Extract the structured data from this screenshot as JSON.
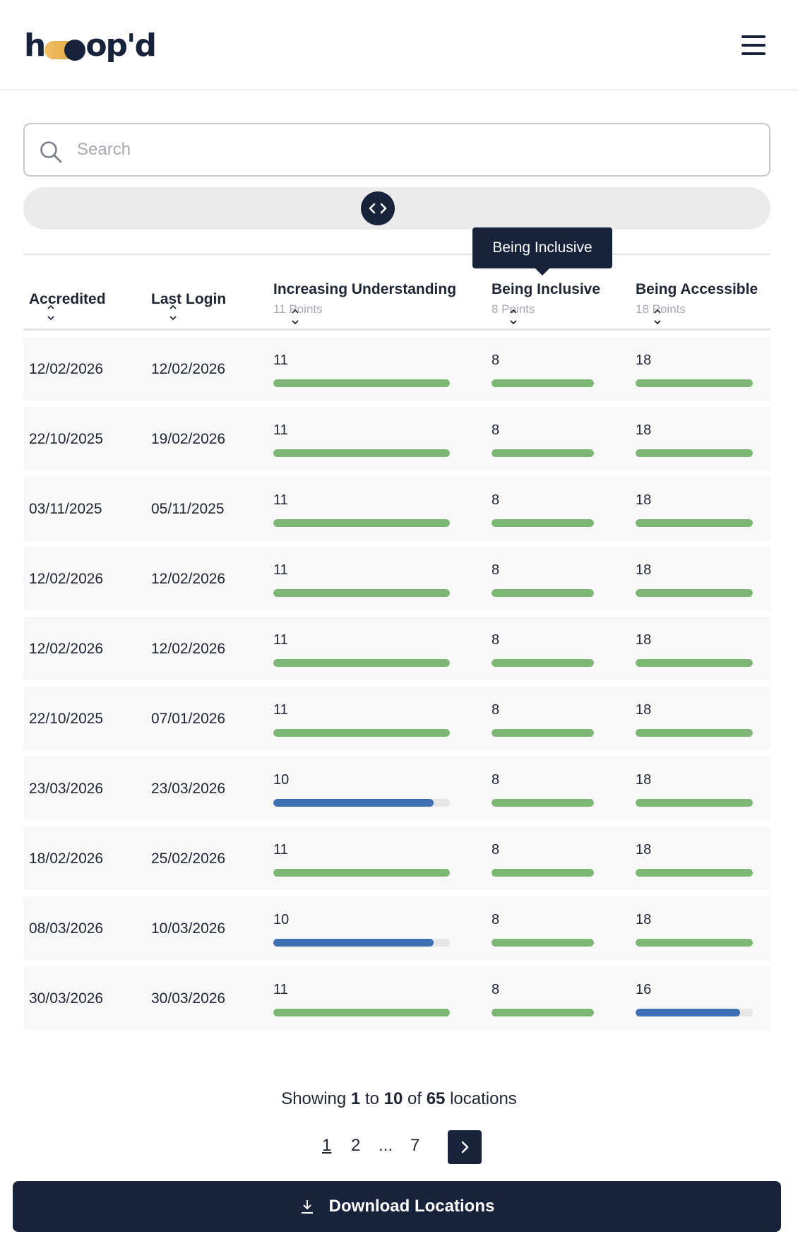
{
  "header": {
    "logo_text_left": "h",
    "logo_text_right": "op'd",
    "menu_icon": "hamburger-menu-icon"
  },
  "search": {
    "placeholder": "Search",
    "value": "",
    "icon": "search-icon"
  },
  "scroll_control": {
    "icon": "code-arrows-icon"
  },
  "tooltip": {
    "text": "Being Inclusive"
  },
  "table": {
    "columns": [
      {
        "key": "accredited",
        "label": "Accredited",
        "sub": ""
      },
      {
        "key": "last_login",
        "label": "Last Login",
        "sub": ""
      },
      {
        "key": "increasing_understanding",
        "label": "Increasing Understanding",
        "sub": "11 Points",
        "max": 11
      },
      {
        "key": "being_inclusive",
        "label": "Being Inclusive",
        "sub": "8 Points",
        "max": 8
      },
      {
        "key": "being_accessible",
        "label": "Being Accessible",
        "sub": "18 Points",
        "max": 18
      }
    ],
    "rows": [
      {
        "accredited": "12/02/2026",
        "last_login": "12/02/2026",
        "iu": "11",
        "bi": "8",
        "ba": "18"
      },
      {
        "accredited": "22/10/2025",
        "last_login": "19/02/2026",
        "iu": "11",
        "bi": "8",
        "ba": "18"
      },
      {
        "accredited": "03/11/2025",
        "last_login": "05/11/2025",
        "iu": "11",
        "bi": "8",
        "ba": "18"
      },
      {
        "accredited": "12/02/2026",
        "last_login": "12/02/2026",
        "iu": "11",
        "bi": "8",
        "ba": "18"
      },
      {
        "accredited": "12/02/2026",
        "last_login": "12/02/2026",
        "iu": "11",
        "bi": "8",
        "ba": "18"
      },
      {
        "accredited": "22/10/2025",
        "last_login": "07/01/2026",
        "iu": "11",
        "bi": "8",
        "ba": "18"
      },
      {
        "accredited": "23/03/2026",
        "last_login": "23/03/2026",
        "iu": "10",
        "bi": "8",
        "ba": "18"
      },
      {
        "accredited": "18/02/2026",
        "last_login": "25/02/2026",
        "iu": "11",
        "bi": "8",
        "ba": "18"
      },
      {
        "accredited": "08/03/2026",
        "last_login": "10/03/2026",
        "iu": "10",
        "bi": "8",
        "ba": "18"
      },
      {
        "accredited": "30/03/2026",
        "last_login": "30/03/2026",
        "iu": "11",
        "bi": "8",
        "ba": "16"
      }
    ],
    "colors": {
      "complete": "#7cb774",
      "partial": "#3e6fb4",
      "track": "#e6e6e6"
    }
  },
  "pagination": {
    "showing_prefix": "Showing",
    "from": "1",
    "to_word": "to",
    "to": "10",
    "of_word": "of",
    "total": "65",
    "suffix": "locations",
    "pages": [
      "1",
      "2",
      "...",
      "7"
    ],
    "current": "1",
    "next_icon": "chevron-right-icon"
  },
  "download": {
    "label": "Download Locations",
    "icon": "download-icon"
  }
}
